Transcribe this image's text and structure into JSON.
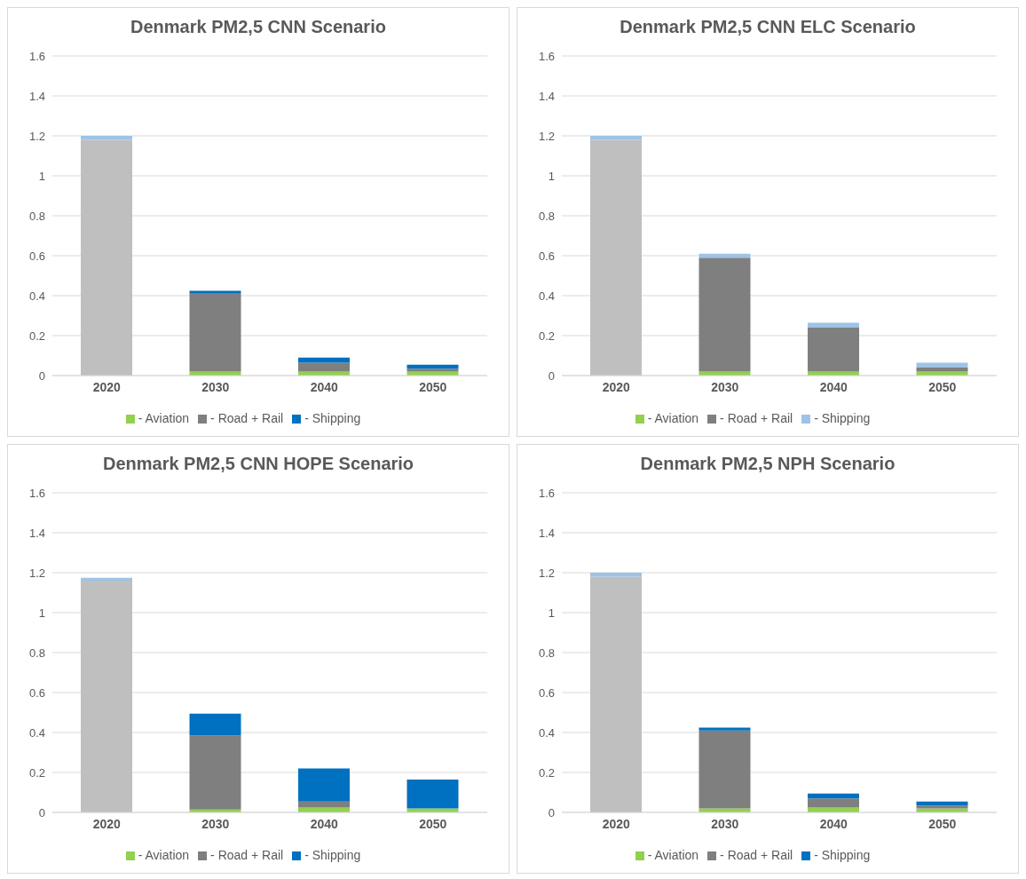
{
  "chart_data": [
    {
      "type": "bar",
      "title": "Denmark PM2,5 CNN Scenario",
      "categories": [
        "2020",
        "2030",
        "2040",
        "2050"
      ],
      "stacked": true,
      "ylim": [
        0,
        1.6
      ],
      "yticks": [
        0,
        0.2,
        0.4,
        0.6,
        0.8,
        1,
        1.2,
        1.4,
        1.6
      ],
      "grid": "y",
      "legend": "bottom",
      "series": [
        {
          "name": "- Aviation",
          "color": "#92d050",
          "values": [
            null,
            0.02,
            0.02,
            0.02
          ]
        },
        {
          "name": "- Road + Rail",
          "color": "#7f7f7f",
          "colors": [
            "#bfbfbf",
            "#7f7f7f",
            "#7f7f7f",
            "#7f7f7f"
          ],
          "values": [
            1.18,
            0.39,
            0.045,
            0.015
          ]
        },
        {
          "name": "- Shipping",
          "color": "#0070c0",
          "colors": [
            "#9dc3e6",
            "#0070c0",
            "#0070c0",
            "#0070c0"
          ],
          "values": [
            0.02,
            0.015,
            0.025,
            0.02
          ]
        }
      ]
    },
    {
      "type": "bar",
      "title": "Denmark PM2,5 CNN ELC Scenario",
      "categories": [
        "2020",
        "2030",
        "2040",
        "2050"
      ],
      "stacked": true,
      "ylim": [
        0,
        1.6
      ],
      "yticks": [
        0,
        0.2,
        0.4,
        0.6,
        0.8,
        1,
        1.2,
        1.4,
        1.6
      ],
      "grid": "y",
      "legend": "bottom",
      "series": [
        {
          "name": "- Aviation",
          "color": "#92d050",
          "values": [
            null,
            0.02,
            0.02,
            0.02
          ]
        },
        {
          "name": "- Road + Rail",
          "color": "#7f7f7f",
          "colors": [
            "#bfbfbf",
            "#7f7f7f",
            "#7f7f7f",
            "#7f7f7f"
          ],
          "values": [
            1.18,
            0.57,
            0.22,
            0.02
          ]
        },
        {
          "name": "- Shipping",
          "color": "#9dc3e6",
          "values": [
            0.02,
            0.02,
            0.025,
            0.025
          ]
        }
      ]
    },
    {
      "type": "bar",
      "title": "Denmark PM2,5 CNN HOPE Scenario",
      "categories": [
        "2020",
        "2030",
        "2040",
        "2050"
      ],
      "stacked": true,
      "ylim": [
        0,
        1.6
      ],
      "yticks": [
        0,
        0.2,
        0.4,
        0.6,
        0.8,
        1,
        1.2,
        1.4,
        1.6
      ],
      "grid": "y",
      "legend": "bottom",
      "series": [
        {
          "name": "- Aviation",
          "color": "#92d050",
          "values": [
            null,
            0.015,
            0.025,
            0.02
          ]
        },
        {
          "name": "- Road + Rail",
          "color": "#7f7f7f",
          "colors": [
            "#bfbfbf",
            "#7f7f7f",
            "#7f7f7f",
            "#7f7f7f"
          ],
          "values": [
            1.16,
            0.37,
            0.03,
            0
          ]
        },
        {
          "name": "- Shipping",
          "color": "#0070c0",
          "colors": [
            "#9dc3e6",
            "#0070c0",
            "#0070c0",
            "#0070c0"
          ],
          "values": [
            0.015,
            0.11,
            0.165,
            0.145
          ]
        }
      ]
    },
    {
      "type": "bar",
      "title": "Denmark PM2,5 NPH Scenario",
      "categories": [
        "2020",
        "2030",
        "2040",
        "2050"
      ],
      "stacked": true,
      "ylim": [
        0,
        1.6
      ],
      "yticks": [
        0,
        0.2,
        0.4,
        0.6,
        0.8,
        1,
        1.2,
        1.4,
        1.6
      ],
      "grid": "y",
      "legend": "bottom",
      "series": [
        {
          "name": "- Aviation",
          "color": "#92d050",
          "values": [
            null,
            0.02,
            0.025,
            0.02
          ]
        },
        {
          "name": "- Road + Rail",
          "color": "#7f7f7f",
          "colors": [
            "#bfbfbf",
            "#7f7f7f",
            "#7f7f7f",
            "#7f7f7f"
          ],
          "values": [
            1.18,
            0.39,
            0.045,
            0.015
          ]
        },
        {
          "name": "- Shipping",
          "color": "#0070c0",
          "colors": [
            "#9dc3e6",
            "#0070c0",
            "#0070c0",
            "#0070c0"
          ],
          "values": [
            0.02,
            0.015,
            0.025,
            0.02
          ]
        }
      ]
    }
  ]
}
